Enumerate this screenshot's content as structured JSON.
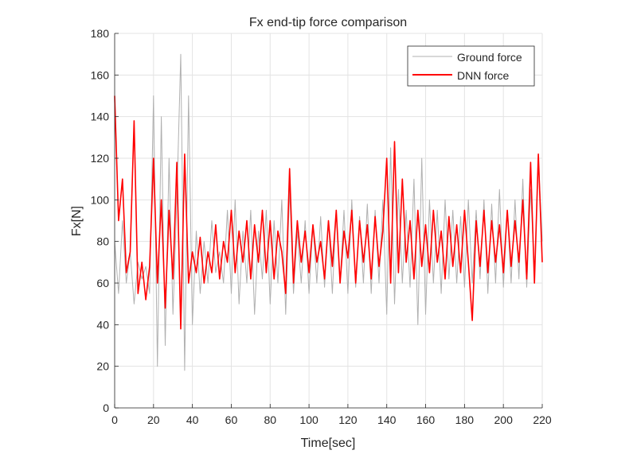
{
  "chart_data": {
    "type": "line",
    "title": "Fx end-tip force comparison",
    "xlabel": "Time[sec]",
    "ylabel": "Fx[N]",
    "xlim": [
      0,
      220
    ],
    "ylim": [
      0,
      180
    ],
    "xticks": [
      0,
      20,
      40,
      60,
      80,
      100,
      120,
      140,
      160,
      180,
      200,
      220
    ],
    "yticks": [
      0,
      20,
      40,
      60,
      80,
      100,
      120,
      140,
      160,
      180
    ],
    "grid": true,
    "legend_position": "top-right",
    "x": [
      0,
      2,
      4,
      6,
      8,
      10,
      12,
      14,
      16,
      18,
      20,
      22,
      24,
      26,
      28,
      30,
      32,
      34,
      36,
      38,
      40,
      42,
      44,
      46,
      48,
      50,
      52,
      54,
      56,
      58,
      60,
      62,
      64,
      66,
      68,
      70,
      72,
      74,
      76,
      78,
      80,
      82,
      84,
      86,
      88,
      90,
      92,
      94,
      96,
      98,
      100,
      102,
      104,
      106,
      108,
      110,
      112,
      114,
      116,
      118,
      120,
      122,
      124,
      126,
      128,
      130,
      132,
      134,
      136,
      138,
      140,
      142,
      144,
      146,
      148,
      150,
      152,
      154,
      156,
      158,
      160,
      162,
      164,
      166,
      168,
      170,
      172,
      174,
      176,
      178,
      180,
      182,
      184,
      186,
      188,
      190,
      192,
      194,
      196,
      198,
      200,
      202,
      204,
      206,
      208,
      210,
      212,
      214,
      216,
      218,
      220
    ],
    "series": [
      {
        "name": "Ground force",
        "color": "#b0b0b0",
        "values": [
          80,
          55,
          90,
          60,
          75,
          50,
          70,
          62,
          68,
          55,
          150,
          20,
          140,
          30,
          120,
          45,
          100,
          170,
          18,
          150,
          40,
          85,
          55,
          80,
          60,
          90,
          65,
          75,
          60,
          95,
          55,
          100,
          50,
          85,
          60,
          95,
          45,
          85,
          62,
          95,
          50,
          90,
          60,
          100,
          45,
          105,
          55,
          85,
          60,
          90,
          55,
          88,
          60,
          92,
          58,
          90,
          55,
          95,
          60,
          95,
          55,
          100,
          58,
          92,
          60,
          98,
          55,
          95,
          60,
          100,
          45,
          125,
          50,
          105,
          60,
          95,
          58,
          110,
          40,
          120,
          45,
          100,
          60,
          95,
          55,
          100,
          62,
          95,
          60,
          92,
          58,
          100,
          60,
          95,
          62,
          100,
          55,
          98,
          60,
          105,
          58,
          95,
          60,
          100,
          62,
          110,
          58,
          105,
          65,
          120,
          80
        ]
      },
      {
        "name": "DNN force",
        "color": "#ff0000",
        "values": [
          150,
          90,
          110,
          65,
          75,
          138,
          55,
          70,
          52,
          68,
          120,
          60,
          100,
          48,
          95,
          62,
          118,
          38,
          122,
          60,
          75,
          65,
          82,
          60,
          75,
          65,
          88,
          62,
          80,
          70,
          95,
          65,
          85,
          70,
          90,
          62,
          88,
          70,
          95,
          65,
          90,
          62,
          85,
          75,
          55,
          115,
          60,
          90,
          70,
          85,
          65,
          88,
          70,
          80,
          62,
          90,
          68,
          95,
          60,
          85,
          72,
          95,
          60,
          90,
          70,
          88,
          62,
          92,
          68,
          85,
          120,
          60,
          128,
          65,
          110,
          70,
          90,
          62,
          95,
          68,
          88,
          65,
          95,
          70,
          85,
          62,
          92,
          68,
          88,
          65,
          95,
          70,
          42,
          90,
          68,
          95,
          65,
          90,
          70,
          88,
          65,
          95,
          68,
          90,
          70,
          100,
          62,
          118,
          60,
          122,
          70
        ]
      }
    ]
  }
}
